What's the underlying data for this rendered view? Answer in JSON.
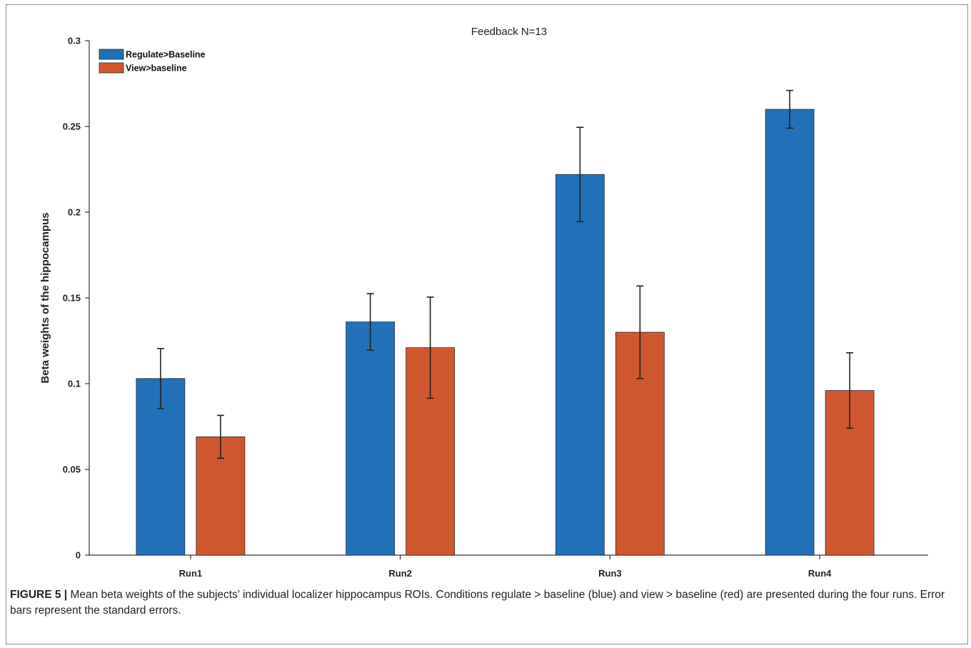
{
  "chart_data": {
    "type": "bar",
    "title": "Feedback N=13",
    "ylabel": "Beta weights of the hippocampus",
    "xlabel": "",
    "categories": [
      "Run1",
      "Run2",
      "Run3",
      "Run4"
    ],
    "ylim": [
      0,
      0.3
    ],
    "yticks": [
      0,
      0.05,
      0.1,
      0.15,
      0.2,
      0.25,
      0.3
    ],
    "ytick_labels": [
      "0",
      "0.05",
      "0.1",
      "0.15",
      "0.2",
      "0.25",
      "0.3"
    ],
    "legend_position": "top-left",
    "grid": false,
    "series": [
      {
        "name": "Regulate>Baseline",
        "color": "#2271b8",
        "values": [
          0.103,
          0.136,
          0.222,
          0.26
        ],
        "errors": [
          0.0175,
          0.0165,
          0.0275,
          0.011
        ]
      },
      {
        "name": "View>baseline",
        "color": "#cf5730",
        "values": [
          0.069,
          0.121,
          0.13,
          0.096
        ],
        "errors": [
          0.0125,
          0.0295,
          0.027,
          0.022
        ]
      }
    ]
  },
  "caption": {
    "label": "FIGURE 5 |",
    "text": " Mean beta weights of the subjects’ individual localizer hippocampus ROIs. Conditions regulate > baseline (blue) and view > baseline (red) are presented during the four runs. Error bars represent the standard errors."
  }
}
